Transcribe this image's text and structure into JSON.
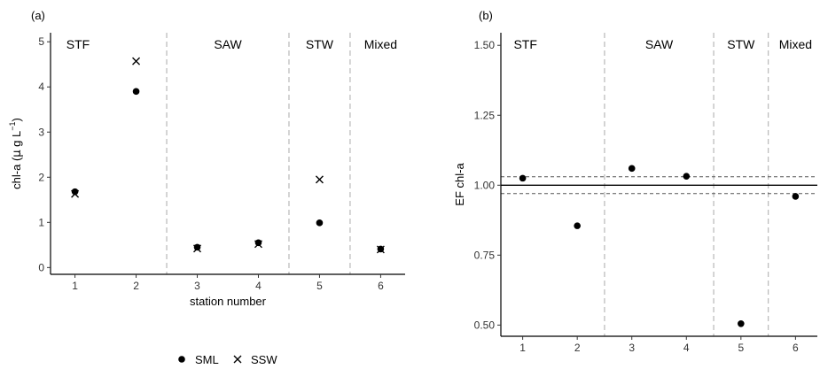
{
  "chart_data": [
    {
      "panel_label": "(a)",
      "type": "scatter",
      "xlabel": "station number",
      "ylabel_parts": [
        "chl-a (",
        "μ",
        " g L",
        "−1",
        ")"
      ],
      "x_ticks": [
        1,
        2,
        3,
        4,
        5,
        6
      ],
      "y_ticks": [
        "0",
        "1",
        "2",
        "3",
        "4",
        "5"
      ],
      "xlim": [
        0.6,
        6.4
      ],
      "ylim": [
        -0.15,
        5.2
      ],
      "region_dividers_x": [
        2.5,
        4.5,
        5.5
      ],
      "regions": [
        {
          "label": "STF",
          "x": 1.05
        },
        {
          "label": "SAW",
          "x": 3.5
        },
        {
          "label": "STW",
          "x": 5.0
        },
        {
          "label": "Mixed",
          "x": 6.0
        }
      ],
      "series": [
        {
          "name": "SML",
          "marker": "circle",
          "points": [
            [
              1,
              1.68
            ],
            [
              2,
              3.9
            ],
            [
              3,
              0.45
            ],
            [
              4,
              0.55
            ],
            [
              5,
              0.99
            ],
            [
              6,
              0.41
            ]
          ]
        },
        {
          "name": "SSW",
          "marker": "cross",
          "points": [
            [
              1,
              1.63
            ],
            [
              2,
              4.57
            ],
            [
              3,
              0.42
            ],
            [
              4,
              0.52
            ],
            [
              5,
              1.95
            ],
            [
              6,
              0.4
            ]
          ]
        }
      ],
      "grid": false,
      "legend": "bottom"
    },
    {
      "panel_label": "(b)",
      "type": "scatter",
      "xlabel": "",
      "ylabel": "EF chl-a",
      "x_ticks": [
        1,
        2,
        3,
        4,
        5,
        6
      ],
      "y_ticks": [
        "0.50",
        "0.75",
        "1.00",
        "1.25",
        "1.50"
      ],
      "xlim": [
        0.6,
        6.4
      ],
      "ylim": [
        0.46,
        1.545
      ],
      "region_dividers_x": [
        2.5,
        4.5,
        5.5
      ],
      "regions": [
        {
          "label": "STF",
          "x": 1.05
        },
        {
          "label": "SAW",
          "x": 3.5
        },
        {
          "label": "STW",
          "x": 5.0
        },
        {
          "label": "Mixed",
          "x": 6.0
        }
      ],
      "reference_lines": [
        {
          "y": 1.0,
          "style": "solid"
        },
        {
          "y": 1.03,
          "style": "dashed"
        },
        {
          "y": 0.97,
          "style": "dashed"
        }
      ],
      "series": [
        {
          "name": "",
          "marker": "circle",
          "points": [
            [
              1,
              1.025
            ],
            [
              2,
              0.855
            ],
            [
              3,
              1.06
            ],
            [
              4,
              1.032
            ],
            [
              5,
              0.505
            ],
            [
              6,
              0.96
            ]
          ]
        }
      ],
      "grid": false
    }
  ],
  "legend": {
    "items": [
      {
        "label": "SML",
        "marker": "circle"
      },
      {
        "label": "SSW",
        "marker": "cross"
      }
    ]
  }
}
